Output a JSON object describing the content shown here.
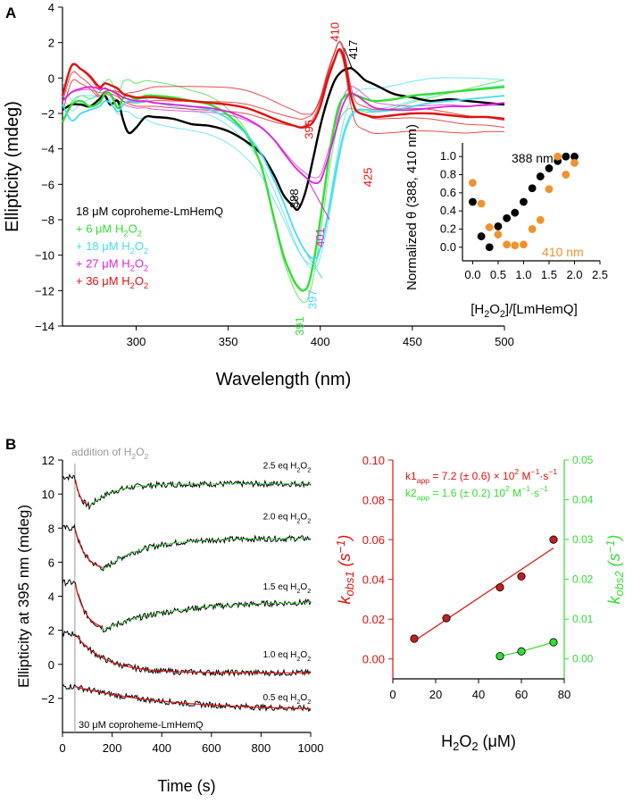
{
  "panel_labels": {
    "a": "A",
    "b": "B"
  },
  "colors": {
    "black": "#000000",
    "green": "#33dd33",
    "cyan": "#44ddee",
    "magenta": "#dd22dd",
    "red": "#dd1111",
    "orange": "#f0922e",
    "gray": "#999999"
  },
  "chart_data": [
    {
      "id": "cd_spectra",
      "type": "line",
      "title": "",
      "xlabel": "Wavelength (nm)",
      "ylabel": "Ellipticity (mdeg)",
      "xlim": [
        260,
        500
      ],
      "ylim": [
        -14,
        4
      ],
      "xticks": [
        300,
        350,
        400,
        450,
        500
      ],
      "yticks": [
        -14,
        -12,
        -10,
        -8,
        -6,
        -4,
        -2,
        0,
        2,
        4
      ],
      "legend": [
        "18 μM coproheme-LmHemQ",
        "+ 6 μM H2O2",
        "+ 18 μM H2O2",
        "+ 27 μM H2O2",
        "+ 36 μM H2O2"
      ],
      "series": [
        {
          "name": "18 μM coproheme-LmHemQ",
          "color": "black",
          "x": [
            260,
            265,
            270,
            275,
            280,
            283,
            286,
            290,
            293,
            296,
            300,
            305,
            310,
            320,
            330,
            340,
            350,
            360,
            368,
            375,
            380,
            385,
            388,
            392,
            396,
            400,
            404,
            408,
            412,
            416,
            417,
            420,
            424,
            428,
            432,
            440,
            450,
            460,
            470,
            480,
            490,
            500
          ],
          "y": [
            -1.8,
            -1.5,
            -1.5,
            -1.6,
            -1.2,
            -1.0,
            -1.5,
            -1.3,
            -2.4,
            -3.1,
            -2.8,
            -2.2,
            -2.2,
            -2.3,
            -2.6,
            -2.7,
            -3.0,
            -3.6,
            -4.3,
            -5.5,
            -6.6,
            -7.2,
            -7.4,
            -6.4,
            -4.6,
            -2.7,
            -1.2,
            -0.1,
            0.4,
            0.55,
            0.55,
            0.3,
            -0.1,
            -0.3,
            -0.5,
            -0.9,
            -1.1,
            -1.3,
            -1.2,
            -1.3,
            -1.4,
            -1.5
          ]
        },
        {
          "name": "+ 6 μM H2O2",
          "color": "green",
          "x": [
            260,
            265,
            270,
            275,
            280,
            283,
            286,
            290,
            293,
            296,
            300,
            305,
            310,
            320,
            330,
            340,
            350,
            360,
            368,
            375,
            380,
            385,
            388,
            391,
            394,
            398,
            402,
            406,
            410,
            415,
            420,
            425,
            430,
            440,
            450,
            460,
            470,
            480,
            490,
            500
          ],
          "y": [
            -2.5,
            -1.5,
            -1.3,
            -1.6,
            -1.4,
            -0.9,
            -0.9,
            -1.7,
            -1.1,
            -1.0,
            -1.2,
            -1.0,
            -1.0,
            -1.1,
            -1.3,
            -1.5,
            -2.1,
            -3.2,
            -5.0,
            -8.0,
            -10.0,
            -11.3,
            -11.8,
            -12.0,
            -11.5,
            -9.4,
            -6.5,
            -3.6,
            -1.6,
            -0.9,
            -1.0,
            -1.2,
            -1.3,
            -1.2,
            -1.0,
            -0.9,
            -0.8,
            -0.7,
            -0.6,
            -0.5
          ]
        },
        {
          "name": "+ 18 μM H2O2",
          "color": "cyan",
          "x": [
            260,
            265,
            270,
            275,
            280,
            283,
            286,
            290,
            293,
            296,
            300,
            305,
            310,
            320,
            330,
            340,
            350,
            360,
            368,
            375,
            380,
            386,
            392,
            397,
            400,
            404,
            408,
            412,
            416,
            420,
            425,
            430,
            440,
            450,
            460,
            470,
            480,
            490,
            500
          ],
          "y": [
            -1.5,
            -2.4,
            -2.0,
            -1.8,
            -1.6,
            -1.3,
            -1.4,
            -1.9,
            -1.5,
            -1.3,
            -1.4,
            -1.3,
            -1.4,
            -1.5,
            -1.6,
            -1.8,
            -2.3,
            -3.2,
            -4.3,
            -5.8,
            -7.0,
            -8.6,
            -9.8,
            -10.2,
            -9.6,
            -7.8,
            -5.5,
            -3.4,
            -2.2,
            -1.8,
            -1.8,
            -1.9,
            -1.8,
            -1.6,
            -1.4,
            -1.3,
            -1.2,
            -1.1,
            -1.0
          ]
        },
        {
          "name": "+ 27 μM H2O2",
          "color": "magenta",
          "x": [
            260,
            265,
            270,
            275,
            280,
            283,
            286,
            290,
            293,
            296,
            300,
            305,
            310,
            320,
            330,
            340,
            350,
            360,
            368,
            375,
            380,
            386,
            392,
            396,
            400,
            404,
            408,
            412,
            416,
            420,
            425,
            430,
            440,
            450,
            460,
            470,
            480,
            490,
            500
          ],
          "y": [
            -1.3,
            -0.8,
            -0.6,
            -0.5,
            -0.6,
            -0.6,
            -0.7,
            -0.9,
            -1.1,
            -1.2,
            -1.3,
            -1.3,
            -1.4,
            -1.5,
            -1.6,
            -1.7,
            -1.9,
            -2.3,
            -2.8,
            -3.5,
            -4.2,
            -5.0,
            -5.6,
            -5.9,
            -5.8,
            -4.6,
            -3.1,
            -1.6,
            -0.9,
            -1.0,
            -1.4,
            -1.7,
            -1.8,
            -1.8,
            -1.7,
            -1.6,
            -1.6,
            -1.5,
            -1.4
          ]
        },
        {
          "name": "+ 36 μM H2O2",
          "color": "red",
          "x": [
            260,
            265,
            270,
            275,
            280,
            283,
            286,
            290,
            293,
            296,
            300,
            305,
            310,
            320,
            330,
            340,
            350,
            360,
            368,
            375,
            380,
            386,
            390,
            393,
            396,
            400,
            404,
            408,
            410,
            412,
            414,
            416,
            418,
            420,
            425,
            430,
            440,
            450,
            460,
            470,
            480,
            490,
            500
          ],
          "y": [
            -1.0,
            0.7,
            0.5,
            0.1,
            -0.5,
            -0.3,
            -0.4,
            -0.6,
            -0.9,
            -1.0,
            -1.1,
            -1.1,
            -1.1,
            -1.2,
            -1.3,
            -1.4,
            -1.5,
            -1.7,
            -2.0,
            -2.3,
            -2.5,
            -2.7,
            -2.8,
            -2.7,
            -2.5,
            -1.6,
            -0.1,
            1.1,
            1.6,
            1.4,
            0.5,
            -0.7,
            -1.5,
            -1.9,
            -2.1,
            -2.2,
            -2.1,
            -2.0,
            -2.0,
            -2.1,
            -2.2,
            -2.2,
            -2.3
          ]
        }
      ],
      "intermediates": [
        {
          "color": "green",
          "dy": 0.9
        },
        {
          "color": "cyan",
          "dy": 0.6
        },
        {
          "color": "cyan",
          "dy": 1.4
        },
        {
          "color": "magenta",
          "dy": 0.4
        },
        {
          "color": "red",
          "dy": 0.5
        },
        {
          "color": "red",
          "dy": 1.0
        },
        {
          "color": "red",
          "dy": -0.5
        }
      ],
      "annotations": [
        {
          "text": "410",
          "color": "red",
          "x": 410,
          "y": 2.6,
          "rot": -90
        },
        {
          "text": "417",
          "color": "black",
          "x": 420,
          "y": 1.6,
          "rot": -90
        },
        {
          "text": "396",
          "color": "red",
          "x": 396,
          "y": -2.9,
          "rot": -90
        },
        {
          "text": "425",
          "color": "red",
          "x": 428,
          "y": -5.6,
          "rot": -90
        },
        {
          "text": "388",
          "color": "black",
          "x": 388,
          "y": -6.8,
          "rot": -90
        },
        {
          "text": "401",
          "color": "magenta",
          "x": 402,
          "y": -9.0,
          "rot": -90
        },
        {
          "text": "397",
          "color": "cyan",
          "x": 398,
          "y": -12.5,
          "rot": -90
        },
        {
          "text": "391",
          "color": "green",
          "x": 391,
          "y": -14.0,
          "rot": -90
        }
      ],
      "legend_items": [
        {
          "prefix": "18 μM coproheme-LmHemQ",
          "sub": "",
          "suffix": "",
          "color": "black"
        },
        {
          "prefix": "+ 6 μM H",
          "sub": "2",
          "suffix": "O",
          "sub2": "2",
          "color": "green"
        },
        {
          "prefix": "+ 18 μM H",
          "sub": "2",
          "suffix": "O",
          "sub2": "2",
          "color": "cyan"
        },
        {
          "prefix": "+ 27 μM H",
          "sub": "2",
          "suffix": "O",
          "sub2": "2",
          "color": "magenta"
        },
        {
          "prefix": "+ 36 μM H",
          "sub": "2",
          "suffix": "O",
          "sub2": "2",
          "color": "red"
        }
      ]
    },
    {
      "id": "inset_normalized",
      "type": "scatter",
      "xlabel": "[H2O2]/[LmHemQ]",
      "ylabel": "Normalized θ (388, 410 nm)",
      "xlim": [
        -0.2,
        2.5
      ],
      "ylim": [
        -0.15,
        1.15
      ],
      "xticks": [
        0.0,
        0.5,
        1.0,
        1.5,
        2.0,
        2.5
      ],
      "yticks": [
        0.0,
        0.2,
        0.4,
        0.6,
        0.8,
        1.0
      ],
      "series": [
        {
          "name": "388 nm",
          "color": "black",
          "x": [
            0.0,
            0.17,
            0.33,
            0.5,
            0.67,
            0.83,
            1.0,
            1.17,
            1.33,
            1.5,
            1.67,
            1.83,
            2.0
          ],
          "y": [
            0.5,
            0.12,
            0.0,
            0.23,
            0.32,
            0.38,
            0.5,
            0.65,
            0.78,
            0.87,
            0.95,
            1.0,
            1.0
          ]
        },
        {
          "name": "410 nm",
          "color": "orange",
          "x": [
            0.0,
            0.17,
            0.33,
            0.5,
            0.67,
            0.83,
            1.0,
            1.17,
            1.33,
            1.5,
            1.67,
            1.83,
            2.0
          ],
          "y": [
            0.71,
            0.48,
            0.22,
            0.14,
            0.03,
            0.02,
            0.03,
            0.2,
            0.3,
            0.64,
            1.0,
            0.8,
            0.93
          ]
        }
      ]
    },
    {
      "id": "kinetics_traces",
      "type": "line",
      "xlabel": "Time (s)",
      "ylabel": "Ellipticity at 395 nm (mdeg)",
      "xlim": [
        0,
        1000
      ],
      "ylim": [
        -4,
        12
      ],
      "xticks": [
        0,
        200,
        400,
        600,
        800,
        1000
      ],
      "yticks": [
        -2,
        0,
        2,
        4,
        6,
        8,
        10,
        12
      ],
      "addition_time": 50,
      "series": [
        {
          "name": "2.5 eq H2O2",
          "y0": 11.0,
          "dip": 9.2,
          "dip_t": 105,
          "plateau": 10.6,
          "rise_tau": 90
        },
        {
          "name": "2.0 eq H2O2",
          "y0": 8.0,
          "dip": 5.5,
          "dip_t": 160,
          "plateau": 7.4,
          "rise_tau": 150
        },
        {
          "name": "1.5 eq H2O2",
          "y0": 4.8,
          "dip": 2.0,
          "dip_t": 160,
          "plateau": 3.7,
          "rise_tau": 260
        },
        {
          "name": "1.0 eq H2O2",
          "y0": 1.8,
          "dip": -0.5,
          "dip_t": 350,
          "plateau": -0.4,
          "rise_tau": 0
        },
        {
          "name": "0.5 eq H2O2",
          "y0": -1.3,
          "dip": -2.7,
          "dip_t": 999,
          "plateau": -2.7,
          "rise_tau": 0
        }
      ],
      "trace_labels": [
        {
          "eq": "2.5 eq H",
          "t": 700,
          "y": 11.5
        },
        {
          "eq": "2.0 eq H",
          "t": 700,
          "y": 8.5
        },
        {
          "eq": "1.5 eq H",
          "t": 700,
          "y": 4.4
        },
        {
          "eq": "1.0 eq H",
          "t": 700,
          "y": 0.4
        },
        {
          "eq": "0.5 eq H",
          "t": 700,
          "y": -2.1
        }
      ],
      "addition_label": "addition of H",
      "bottom_label": "30 μM coproheme-LmHemQ"
    },
    {
      "id": "kobs_plot",
      "type": "scatter",
      "xlabel": "H2O2 (μM)",
      "ylabel_left": "kobs1 (s−1)",
      "ylabel_right": "kobs2 (s−1)",
      "xlim": [
        0,
        80
      ],
      "ylim_left": [
        -0.01,
        0.1
      ],
      "ylim_right": [
        -0.005,
        0.05
      ],
      "xticks": [
        0,
        20,
        40,
        60,
        80
      ],
      "yticks_left": [
        0.0,
        0.02,
        0.04,
        0.06,
        0.08,
        0.1
      ],
      "yticks_right": [
        0.0,
        0.01,
        0.02,
        0.03,
        0.04,
        0.05
      ],
      "series": [
        {
          "name": "kobs1",
          "color": "red",
          "x": [
            10,
            25,
            50,
            60,
            75
          ],
          "y": [
            0.0102,
            0.0205,
            0.036,
            0.0415,
            0.06
          ],
          "fit": [
            [
              10,
              0.009
            ],
            [
              75,
              0.0558
            ]
          ]
        },
        {
          "name": "kobs2",
          "color": "green",
          "x": [
            50,
            60,
            75
          ],
          "y": [
            0.0007,
            0.0019,
            0.0042
          ]
        }
      ],
      "eq1": {
        "k": "k",
        "n": "1",
        "app": "app",
        "val": " = 7.2 (± 0.6) × 10",
        "exp": "2",
        "unit": " M",
        "unitexp": "−1",
        "tail": "·s",
        "tailexp": "−1"
      },
      "eq2": {
        "k": "k",
        "n": "2",
        "app": "app",
        "val": " = 1.6 (± 0.2) 10",
        "exp": "2",
        "unit": " M",
        "unitexp": "−1",
        "tail": "·s",
        "tailexp": "−1"
      }
    }
  ]
}
